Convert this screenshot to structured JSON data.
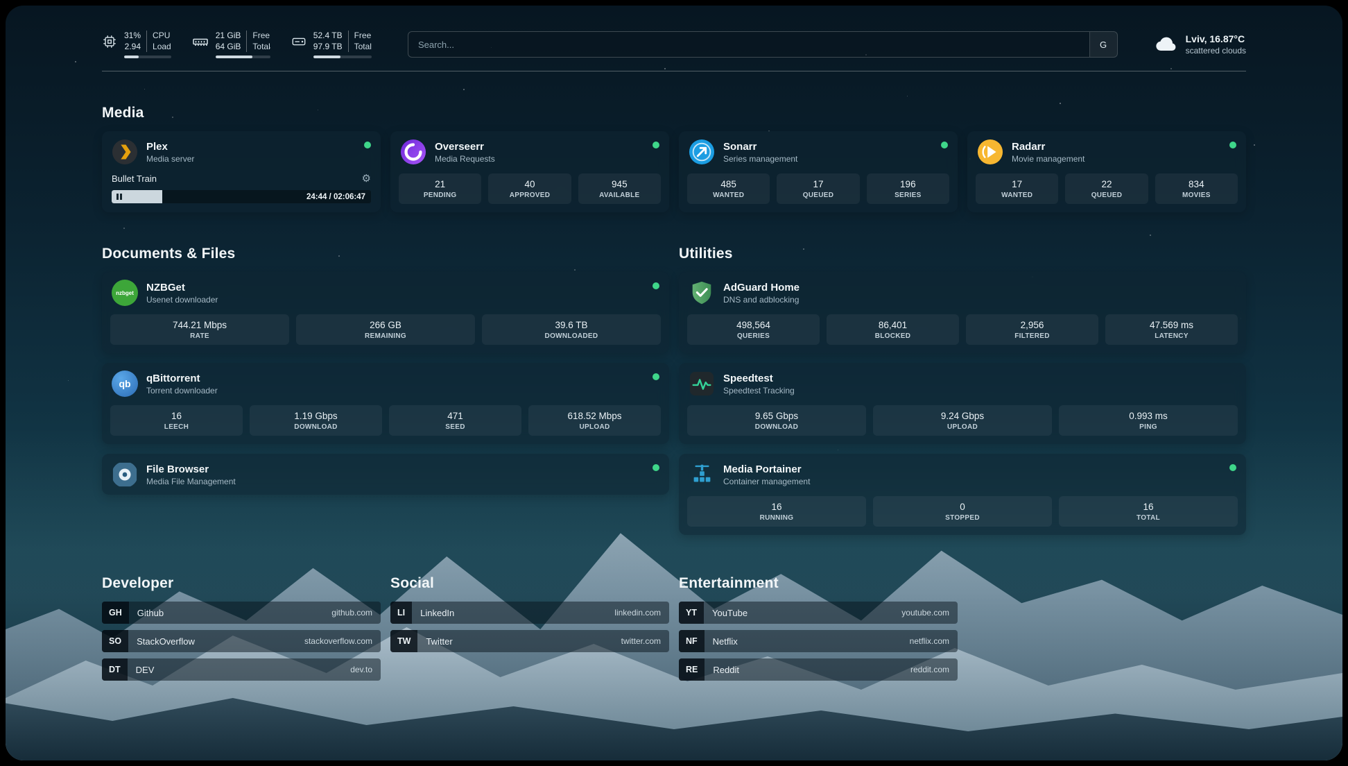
{
  "topbar": {
    "cpu": {
      "value1": "31%",
      "value2": "2.94",
      "label1": "CPU",
      "label2": "Load",
      "progress": 31
    },
    "memory": {
      "value1": "21 GiB",
      "value2": "64 GiB",
      "label1": "Free",
      "label2": "Total",
      "progress": 67
    },
    "disk": {
      "value1": "52.4 TB",
      "value2": "97.9 TB",
      "label1": "Free",
      "label2": "Total",
      "progress": 46
    },
    "search": {
      "placeholder": "Search...",
      "engine_label": "G"
    },
    "weather": {
      "location": "Lviv, 16.87°C",
      "condition": "scattered clouds"
    }
  },
  "sections": {
    "media_title": "Media",
    "documents_title": "Documents & Files",
    "utilities_title": "Utilities",
    "developer_title": "Developer",
    "social_title": "Social",
    "entertainment_title": "Entertainment"
  },
  "media": {
    "plex": {
      "name": "Plex",
      "subtitle": "Media server",
      "now_playing": "Bullet Train",
      "time_display": "24:44 / 02:06:47",
      "progress": 19.5
    },
    "overseerr": {
      "name": "Overseerr",
      "subtitle": "Media Requests",
      "stats": [
        {
          "value": "21",
          "label": "PENDING"
        },
        {
          "value": "40",
          "label": "APPROVED"
        },
        {
          "value": "945",
          "label": "AVAILABLE"
        }
      ]
    },
    "sonarr": {
      "name": "Sonarr",
      "subtitle": "Series management",
      "stats": [
        {
          "value": "485",
          "label": "WANTED"
        },
        {
          "value": "17",
          "label": "QUEUED"
        },
        {
          "value": "196",
          "label": "SERIES"
        }
      ]
    },
    "radarr": {
      "name": "Radarr",
      "subtitle": "Movie management",
      "stats": [
        {
          "value": "17",
          "label": "WANTED"
        },
        {
          "value": "22",
          "label": "QUEUED"
        },
        {
          "value": "834",
          "label": "MOVIES"
        }
      ]
    }
  },
  "documents": {
    "nzbget": {
      "name": "NZBGet",
      "subtitle": "Usenet downloader",
      "icon_text": "nzbget",
      "stats": [
        {
          "value": "744.21 Mbps",
          "label": "RATE"
        },
        {
          "value": "266 GB",
          "label": "REMAINING"
        },
        {
          "value": "39.6 TB",
          "label": "DOWNLOADED"
        }
      ]
    },
    "qbittorrent": {
      "name": "qBittorrent",
      "subtitle": "Torrent downloader",
      "icon_text": "qb",
      "stats": [
        {
          "value": "16",
          "label": "LEECH"
        },
        {
          "value": "1.19 Gbps",
          "label": "DOWNLOAD"
        },
        {
          "value": "471",
          "label": "SEED"
        },
        {
          "value": "618.52 Mbps",
          "label": "UPLOAD"
        }
      ]
    },
    "filebrowser": {
      "name": "File Browser",
      "subtitle": "Media File Management"
    }
  },
  "utilities": {
    "adguard": {
      "name": "AdGuard Home",
      "subtitle": "DNS and adblocking",
      "stats": [
        {
          "value": "498,564",
          "label": "QUERIES"
        },
        {
          "value": "86,401",
          "label": "BLOCKED"
        },
        {
          "value": "2,956",
          "label": "FILTERED"
        },
        {
          "value": "47.569 ms",
          "label": "LATENCY"
        }
      ]
    },
    "speedtest": {
      "name": "Speedtest",
      "subtitle": "Speedtest Tracking",
      "stats": [
        {
          "value": "9.65 Gbps",
          "label": "DOWNLOAD"
        },
        {
          "value": "9.24 Gbps",
          "label": "UPLOAD"
        },
        {
          "value": "0.993 ms",
          "label": "PING"
        }
      ]
    },
    "portainer": {
      "name": "Media Portainer",
      "subtitle": "Container management",
      "stats": [
        {
          "value": "16",
          "label": "RUNNING"
        },
        {
          "value": "0",
          "label": "STOPPED"
        },
        {
          "value": "16",
          "label": "TOTAL"
        }
      ]
    }
  },
  "bookmarks": {
    "developer": [
      {
        "abbr": "GH",
        "name": "Github",
        "url": "github.com"
      },
      {
        "abbr": "SO",
        "name": "StackOverflow",
        "url": "stackoverflow.com"
      },
      {
        "abbr": "DT",
        "name": "DEV",
        "url": "dev.to"
      }
    ],
    "social": [
      {
        "abbr": "LI",
        "name": "LinkedIn",
        "url": "linkedin.com"
      },
      {
        "abbr": "TW",
        "name": "Twitter",
        "url": "twitter.com"
      }
    ],
    "entertainment": [
      {
        "abbr": "YT",
        "name": "YouTube",
        "url": "youtube.com"
      },
      {
        "abbr": "NF",
        "name": "Netflix",
        "url": "netflix.com"
      },
      {
        "abbr": "RE",
        "name": "Reddit",
        "url": "reddit.com"
      }
    ]
  },
  "icons": {
    "gear": "⚙"
  },
  "colors": {
    "status_online": "#3fd68a",
    "plex_accent": "#e5a00d"
  }
}
